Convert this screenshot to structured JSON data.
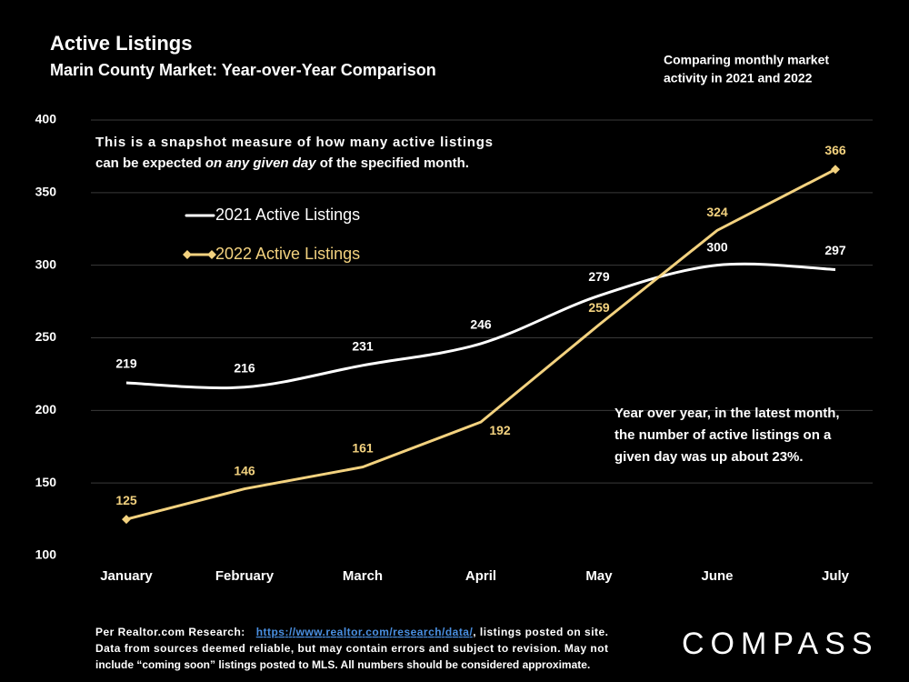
{
  "chart_data": {
    "type": "line",
    "title": "Active Listings",
    "subtitle": "Marin County Market: Year-over-Year Comparison",
    "categories": [
      "January",
      "February",
      "March",
      "April",
      "May",
      "June",
      "July"
    ],
    "series": [
      {
        "name": "2021 Active Listings",
        "color": "#ffffff",
        "values": [
          219,
          216,
          231,
          246,
          279,
          300,
          297
        ],
        "smooth": true
      },
      {
        "name": "2022 Active Listings",
        "color": "#f3d27f",
        "values": [
          125,
          146,
          161,
          192,
          259,
          324,
          366
        ],
        "marker": "diamond"
      }
    ],
    "ylim": [
      100,
      400
    ],
    "yticks": [
      100,
      150,
      200,
      250,
      300,
      350,
      400
    ],
    "grid": true,
    "annotations": [
      {
        "lines": [
          [
            "This is a snapshot measure of how many active listings"
          ],
          [
            "can be expected ",
            "on any given day",
            " of the specified month."
          ]
        ]
      },
      {
        "lines": [
          [
            "Year over year, in the latest month,"
          ],
          [
            "the number of active listings on a"
          ],
          [
            "given day was up about 23%."
          ]
        ]
      }
    ]
  },
  "header_note": {
    "lines": [
      "Comparing monthly market",
      "activity in 2021 and 2022"
    ]
  },
  "footer": {
    "lines": [
      [
        "Per Realtor.com Research:",
        "https://www.realtor.com/research/data/",
        ", listings posted on site."
      ],
      [
        "Data from sources deemed reliable, but may contain errors and subject to revision. May not"
      ],
      [
        "include “coming soon” listings posted to MLS. All numbers should be considered approximate."
      ]
    ]
  },
  "logo": "COMPASS"
}
